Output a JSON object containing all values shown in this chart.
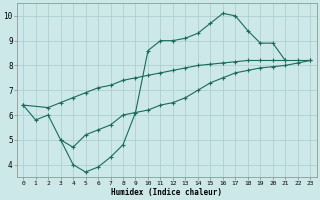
{
  "xlabel": "Humidex (Indice chaleur)",
  "bg_color": "#cce8e8",
  "grid_color": "#aacccc",
  "line_color": "#1a6b5a",
  "xlim": [
    -0.5,
    23.5
  ],
  "ylim": [
    3.5,
    10.5
  ],
  "xticks": [
    0,
    1,
    2,
    3,
    4,
    5,
    6,
    7,
    8,
    9,
    10,
    11,
    12,
    13,
    14,
    15,
    16,
    17,
    18,
    19,
    20,
    21,
    22,
    23
  ],
  "yticks": [
    4,
    5,
    6,
    7,
    8,
    9,
    10
  ],
  "series": [
    {
      "x": [
        0,
        1,
        2,
        3,
        4,
        5,
        6,
        7,
        8,
        9,
        10,
        11,
        12,
        13,
        14,
        15,
        16,
        17,
        18,
        19,
        20,
        21
      ],
      "y": [
        6.4,
        5.8,
        6.0,
        5.0,
        4.0,
        3.7,
        3.9,
        4.3,
        4.8,
        6.1,
        8.6,
        9.0,
        9.0,
        9.1,
        9.3,
        9.7,
        10.1,
        10.0,
        9.4,
        8.9,
        8.9,
        8.2
      ]
    },
    {
      "x": [
        0,
        2,
        3,
        4,
        5,
        6,
        7,
        8,
        9,
        10,
        11,
        12,
        13,
        14,
        15,
        16,
        17,
        18,
        19,
        20,
        21,
        22,
        23
      ],
      "y": [
        6.4,
        6.3,
        6.5,
        6.7,
        6.9,
        7.1,
        7.2,
        7.4,
        7.5,
        7.6,
        7.7,
        7.8,
        7.9,
        8.0,
        8.05,
        8.1,
        8.15,
        8.2,
        8.2,
        8.2,
        8.2,
        8.2,
        8.2
      ]
    },
    {
      "x": [
        3,
        4,
        5,
        6,
        7,
        8,
        9,
        10,
        11,
        12,
        13,
        14,
        15,
        16,
        17,
        18,
        19,
        20,
        21,
        22,
        23
      ],
      "y": [
        5.0,
        4.7,
        5.2,
        5.4,
        5.6,
        6.0,
        6.1,
        6.2,
        6.4,
        6.5,
        6.7,
        7.0,
        7.3,
        7.5,
        7.7,
        7.8,
        7.9,
        7.95,
        8.0,
        8.1,
        8.2
      ]
    }
  ]
}
